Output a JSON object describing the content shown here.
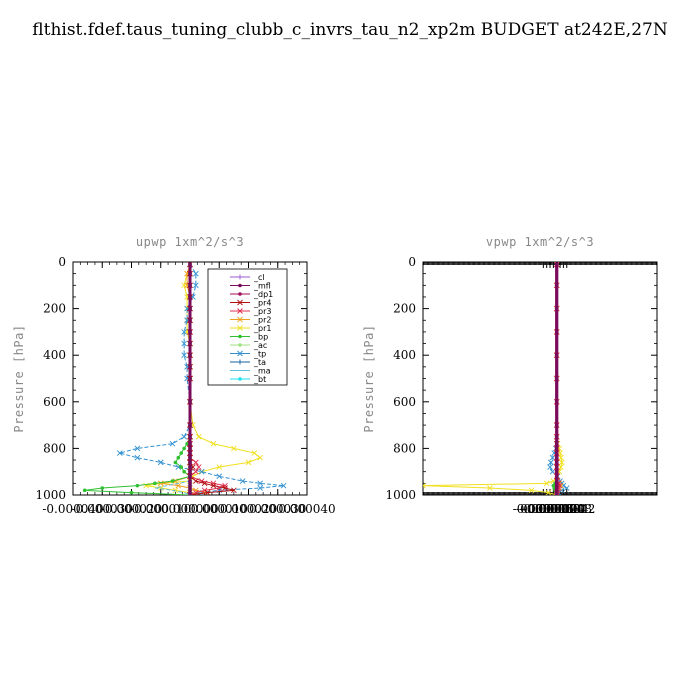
{
  "title": "flthist.fdef.taus_tuning_clubb_c_invrs_tau_n2_xp2m  BUDGET at242E,27N",
  "legend_entries": [
    {
      "name": "_cl",
      "color": "#9b59d0",
      "marker": "+"
    },
    {
      "name": "_mfl",
      "color": "#7a0a5a",
      "marker": "o"
    },
    {
      "name": "_dp1",
      "color": "#a0105a",
      "marker": "o"
    },
    {
      "name": "_pr4",
      "color": "#b01010",
      "marker": "x"
    },
    {
      "name": "_pr3",
      "color": "#e03050",
      "marker": "x"
    },
    {
      "name": "_pr2",
      "color": "#f0a020",
      "marker": "x"
    },
    {
      "name": "_pr1",
      "color": "#f0e020",
      "marker": "x"
    },
    {
      "name": "_bp",
      "color": "#30c030",
      "marker": "o"
    },
    {
      "name": "_ac",
      "color": "#a0e080",
      "marker": "o"
    },
    {
      "name": "_tp",
      "color": "#3090d0",
      "marker": "x"
    },
    {
      "name": "_ta",
      "color": "#1060a0",
      "marker": "+"
    },
    {
      "name": "_ma",
      "color": "#60c0e0",
      "marker": "-"
    },
    {
      "name": "_bt",
      "color": "#20e0f0",
      "marker": "o"
    }
  ],
  "chart_data": [
    {
      "type": "line",
      "title": "upwp   1xm^2/s^3",
      "ylabel": "Pressure [hPa]",
      "xlabel": "",
      "xlim": [
        -4e-05,
        4e-05
      ],
      "ylim": [
        1000,
        0
      ],
      "x_tick_labels": [
        "-0.000040",
        "-0.000030",
        "-0.000020",
        "-0.000010",
        "0.000000",
        "0.000010",
        "0.000020",
        "0.000030",
        "0.000040"
      ],
      "x_tick_values": [
        -4e-05,
        -3e-05,
        -2e-05,
        -1e-05,
        0,
        1e-05,
        2e-05,
        3e-05,
        4e-05
      ],
      "y_ticks": [
        0,
        200,
        400,
        600,
        800,
        1000
      ],
      "legend": "top-right",
      "y": [
        10,
        50,
        100,
        150,
        200,
        250,
        300,
        350,
        400,
        450,
        500,
        600,
        700,
        750,
        780,
        800,
        820,
        840,
        860,
        880,
        900,
        920,
        940,
        950,
        960,
        970,
        980,
        990,
        1000
      ],
      "series": [
        {
          "name": "_pr1",
          "x": [
            0,
            -1e-06,
            -2e-06,
            -1e-06,
            -1e-06,
            -1e-06,
            -1e-06,
            0,
            0,
            0,
            0,
            0,
            1e-06,
            3e-06,
            8e-06,
            1.5e-05,
            2.2e-05,
            2.4e-05,
            2e-05,
            1e-05,
            4e-06,
            1e-06,
            0,
            -1e-05,
            -1.5e-05,
            -1e-05,
            -5e-06,
            0,
            0
          ]
        },
        {
          "name": "_tp",
          "x": [
            0,
            2e-06,
            2e-06,
            1e-06,
            -1e-06,
            -1e-06,
            -2e-06,
            -2e-06,
            -2e-06,
            -1e-06,
            -1e-06,
            0,
            0,
            -2e-06,
            -6e-06,
            -1.8e-05,
            -2.4e-05,
            -1.8e-05,
            -1e-05,
            -4e-06,
            4e-06,
            1e-05,
            1.8e-05,
            2.4e-05,
            3.2e-05,
            2.4e-05,
            1e-05,
            3e-06,
            0
          ]
        },
        {
          "name": "_pr2",
          "x": [
            0,
            -1e-06,
            -1e-06,
            0,
            0,
            0,
            0,
            0,
            0,
            0,
            0,
            0,
            0,
            0,
            0,
            0,
            0,
            0,
            0,
            0,
            0,
            0,
            -5e-06,
            -1e-05,
            -4e-06,
            0,
            2e-06,
            6e-06,
            0
          ]
        },
        {
          "name": "_bp",
          "x": [
            0,
            0,
            0,
            0,
            0,
            0,
            0,
            0,
            0,
            0,
            0,
            0,
            0,
            0,
            -1e-06,
            -2e-06,
            -3e-06,
            -4e-06,
            -5e-06,
            -3e-06,
            -2e-06,
            0,
            -6e-06,
            -1.2e-05,
            -1.8e-05,
            -3e-05,
            -3.6e-05,
            -2e-05,
            0
          ]
        },
        {
          "name": "_pr3",
          "x": [
            0,
            0,
            0,
            0,
            0,
            0,
            0,
            0,
            0,
            0,
            0,
            0,
            0,
            0,
            0,
            0,
            0,
            0,
            2e-06,
            3e-06,
            2e-06,
            0,
            4e-06,
            8e-06,
            1.2e-05,
            1e-05,
            5e-06,
            2e-06,
            0
          ]
        },
        {
          "name": "_pr4",
          "x": [
            0,
            0,
            0,
            0,
            0,
            0,
            0,
            0,
            0,
            0,
            0,
            0,
            0,
            0,
            0,
            0,
            0,
            0,
            0,
            1e-06,
            0,
            0,
            2e-06,
            5e-06,
            8e-06,
            1.2e-05,
            1.5e-05,
            6e-06,
            0
          ]
        },
        {
          "name": "_ma",
          "x": [
            0,
            0,
            0,
            0,
            0,
            0,
            0,
            0,
            0,
            0,
            0,
            0,
            0,
            0,
            0,
            0,
            0,
            0,
            0,
            0,
            0,
            0,
            0,
            -4e-06,
            -8e-06,
            -1.2e-05,
            -6e-06,
            -2e-06,
            0
          ]
        },
        {
          "name": "_dp1",
          "x": [
            0,
            0,
            0,
            0,
            0,
            0,
            0,
            0,
            0,
            0,
            0,
            0,
            0,
            0,
            0,
            0,
            0,
            0,
            0,
            0,
            0,
            0,
            0,
            0,
            0,
            0,
            0,
            0,
            0
          ]
        },
        {
          "name": "_bt",
          "x": [
            0,
            0,
            0,
            0,
            0,
            0,
            0,
            0,
            0,
            0,
            0,
            0,
            0,
            0,
            0,
            0,
            0,
            0,
            0,
            0,
            0,
            0,
            0,
            0,
            0,
            0,
            0,
            0,
            0
          ]
        },
        {
          "name": "_mfl",
          "x": [
            0,
            0,
            0,
            0,
            0,
            0,
            0,
            0,
            0,
            0,
            0,
            0,
            0,
            0,
            0,
            0,
            0,
            0,
            0,
            0,
            0,
            0,
            0,
            0,
            0,
            0,
            0,
            0,
            0
          ]
        }
      ]
    },
    {
      "type": "line",
      "title": "vpwp   1xm^2/s^3",
      "ylabel": "Pressure [hPa]",
      "xlabel": "",
      "xlim": [
        -0.00016,
        0.00012
      ],
      "ylim": [
        1000,
        0
      ],
      "x_tick_labels": [
        "-0.000016",
        "-0.000012",
        "-0.000008",
        "-0.000004",
        "0.000000",
        "0.000004",
        "0.000008",
        "0.000012"
      ],
      "x_tick_values": [
        -1.6e-05,
        -1.2e-05,
        -8e-06,
        -4e-06,
        0,
        4e-06,
        8e-06,
        1.2e-05
      ],
      "y_ticks": [
        0,
        200,
        400,
        600,
        800,
        1000
      ],
      "legend": "none",
      "y": [
        10,
        100,
        200,
        300,
        400,
        500,
        600,
        700,
        750,
        780,
        800,
        820,
        840,
        860,
        880,
        900,
        920,
        940,
        950,
        960,
        970,
        980,
        990,
        1000
      ],
      "series": [
        {
          "name": "_pr1",
          "x": [
            0,
            0,
            0,
            0,
            0,
            0,
            0,
            0,
            0,
            1e-06,
            3e-06,
            4e-06,
            5e-06,
            6e-06,
            5e-06,
            3e-06,
            1e-06,
            -4e-06,
            -1.2e-05,
            -0.00016,
            -8e-05,
            -3e-05,
            -1e-05,
            0
          ]
        },
        {
          "name": "_tp",
          "x": [
            0,
            0,
            0,
            0,
            0,
            0,
            0,
            0,
            0,
            0,
            -1e-06,
            -3e-06,
            -5e-06,
            -7e-06,
            -8e-06,
            -5e-06,
            1e-06,
            4e-06,
            6e-06,
            8e-06,
            1.2e-05,
            6e-06,
            2e-06,
            0
          ]
        },
        {
          "name": "_pr2",
          "x": [
            0,
            0,
            0,
            0,
            0,
            0,
            0,
            0,
            0,
            0,
            0,
            0,
            0,
            0,
            0,
            0,
            0,
            0,
            3e-06,
            5e-06,
            3e-06,
            1e-06,
            0,
            0
          ]
        },
        {
          "name": "_bp",
          "x": [
            0,
            0,
            0,
            0,
            0,
            0,
            0,
            0,
            0,
            0,
            0,
            0,
            0,
            0,
            0,
            0,
            0,
            0,
            -2e-06,
            -4e-06,
            -3e-06,
            -2e-06,
            -1e-06,
            0
          ]
        },
        {
          "name": "_pr3",
          "x": [
            0,
            0,
            0,
            0,
            0,
            0,
            0,
            0,
            0,
            0,
            0,
            0,
            0,
            0,
            0,
            0,
            0,
            1e-06,
            2e-06,
            3e-06,
            2e-06,
            1e-06,
            0,
            0
          ]
        },
        {
          "name": "_dp1",
          "x": [
            0,
            0,
            0,
            0,
            0,
            0,
            0,
            0,
            0,
            0,
            0,
            0,
            0,
            0,
            0,
            0,
            0,
            0,
            0,
            0,
            0,
            0,
            0,
            0
          ]
        },
        {
          "name": "_mfl",
          "x": [
            0,
            0,
            0,
            0,
            0,
            0,
            0,
            0,
            0,
            0,
            0,
            0,
            0,
            0,
            0,
            0,
            0,
            0,
            0,
            0,
            0,
            0,
            0,
            0
          ]
        }
      ]
    }
  ]
}
